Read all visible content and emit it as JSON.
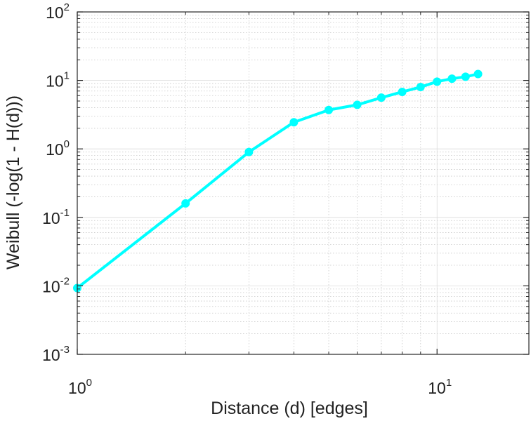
{
  "chart_data": {
    "type": "line",
    "xlabel": "Distance (d) [edges]",
    "ylabel": "Weibull (-log(1 - H(d)))",
    "x_scale": "log",
    "y_scale": "log",
    "xlim": [
      1,
      18
    ],
    "ylim": [
      0.001,
      100
    ],
    "grid": true,
    "x_ticks": [
      {
        "value": 1,
        "base": "10",
        "exp": "0"
      },
      {
        "value": 10,
        "base": "10",
        "exp": "1"
      }
    ],
    "y_ticks": [
      {
        "value": 0.001,
        "base": "10",
        "exp": "-3"
      },
      {
        "value": 0.01,
        "base": "10",
        "exp": "-2"
      },
      {
        "value": 0.1,
        "base": "10",
        "exp": "-1"
      },
      {
        "value": 1,
        "base": "10",
        "exp": "0"
      },
      {
        "value": 10,
        "base": "10",
        "exp": "1"
      },
      {
        "value": 100,
        "base": "10",
        "exp": "2"
      }
    ],
    "series": [
      {
        "color": "#00ffff",
        "marker": "circle",
        "x": [
          1,
          2,
          3,
          4,
          5,
          6,
          7,
          8,
          9,
          10,
          11,
          12,
          13
        ],
        "y": [
          0.0093,
          0.16,
          0.9,
          2.45,
          3.7,
          4.4,
          5.6,
          6.8,
          8.0,
          9.6,
          10.6,
          11.3,
          12.4
        ]
      }
    ]
  }
}
